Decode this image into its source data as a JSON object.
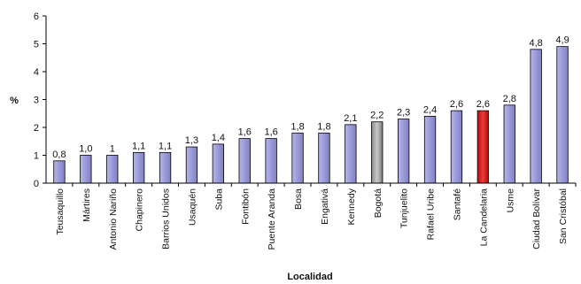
{
  "chart_data": {
    "type": "bar",
    "title": "",
    "xlabel": "Localidad",
    "ylabel": "%",
    "ylim": [
      0,
      6
    ],
    "yticks": [
      "0",
      "1",
      "2",
      "3",
      "4",
      "5",
      "6"
    ],
    "grid": false,
    "categories": [
      "Teusaquillo",
      "Mártires",
      "Antonio Nariño",
      "Chapinero",
      "Barrios Unidos",
      "Usaquén",
      "Suba",
      "Fontibón",
      "Puente Aranda",
      "Bosa",
      "Engativá",
      "Kennedy",
      "Bogotá",
      "Tunjuelito",
      "Rafael Uribe",
      "Santafé",
      "La Candelaria",
      "Usme",
      "Ciudad Bolívar",
      "San Cristóbal"
    ],
    "values": [
      0.8,
      1.0,
      1.0,
      1.1,
      1.1,
      1.3,
      1.4,
      1.6,
      1.6,
      1.8,
      1.8,
      2.1,
      2.2,
      2.3,
      2.4,
      2.6,
      2.6,
      2.8,
      4.8,
      4.9
    ],
    "value_labels": [
      "0,8",
      "1,0",
      "1",
      "1,1",
      "1,1",
      "1,3",
      "1,4",
      "1,6",
      "1,6",
      "1,8",
      "1,8",
      "2,1",
      "2,2",
      "2,3",
      "2,4",
      "2,6",
      "2,6",
      "2,8",
      "4,8",
      "4,9"
    ],
    "colors": {
      "default": "#9a9ad8",
      "highlight_gray": "#a9a9a9",
      "highlight_red": "#e0262a",
      "border": "#000000"
    },
    "bar_colors": [
      "default",
      "default",
      "default",
      "default",
      "default",
      "default",
      "default",
      "default",
      "default",
      "default",
      "default",
      "default",
      "highlight_gray",
      "default",
      "default",
      "default",
      "highlight_red",
      "default",
      "default",
      "default"
    ]
  }
}
